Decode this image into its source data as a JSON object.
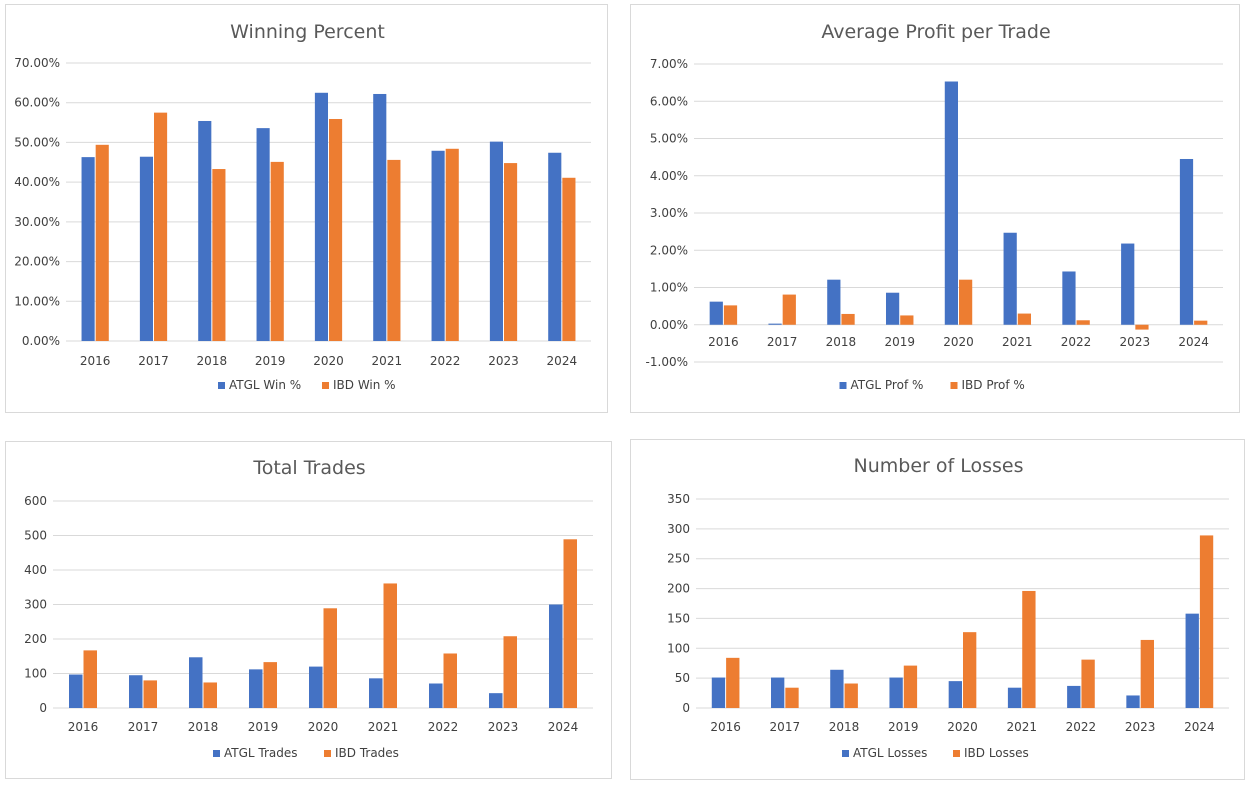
{
  "colors": {
    "atgl": "#4472C4",
    "ibd": "#ED7D31"
  },
  "chart_data": [
    {
      "type": "bar",
      "title": "Winning Percent",
      "categories": [
        "2016",
        "2017",
        "2018",
        "2019",
        "2020",
        "2021",
        "2022",
        "2023",
        "2024"
      ],
      "series": [
        {
          "name": "ATGL Win %",
          "values": [
            46.3,
            46.4,
            55.4,
            53.6,
            62.5,
            62.2,
            47.9,
            50.2,
            47.4
          ]
        },
        {
          "name": "IBD Win %",
          "values": [
            49.4,
            57.5,
            43.3,
            45.1,
            55.9,
            45.6,
            48.4,
            44.8,
            41.1
          ]
        }
      ],
      "ylim": [
        0,
        70
      ],
      "yticks": [
        0,
        10,
        20,
        30,
        40,
        50,
        60,
        70
      ],
      "ytick_labels": [
        "0.00%",
        "10.00%",
        "20.00%",
        "30.00%",
        "40.00%",
        "50.00%",
        "60.00%",
        "70.00%"
      ],
      "legend": "bottom"
    },
    {
      "type": "bar",
      "title": "Average Profit per Trade",
      "categories": [
        "2016",
        "2017",
        "2018",
        "2019",
        "2020",
        "2021",
        "2022",
        "2023",
        "2024"
      ],
      "series": [
        {
          "name": "ATGL Prof %",
          "values": [
            0.62,
            0.03,
            1.21,
            0.86,
            6.53,
            2.47,
            1.43,
            2.18,
            4.45
          ]
        },
        {
          "name": "IBD Prof %",
          "values": [
            0.52,
            0.81,
            0.29,
            0.25,
            1.21,
            0.3,
            0.12,
            -0.13,
            0.11
          ]
        }
      ],
      "ylim": [
        -1,
        7
      ],
      "yticks": [
        -1,
        0,
        1,
        2,
        3,
        4,
        5,
        6,
        7
      ],
      "ytick_labels": [
        "-1.00%",
        "0.00%",
        "1.00%",
        "2.00%",
        "3.00%",
        "4.00%",
        "5.00%",
        "6.00%",
        "7.00%"
      ],
      "legend": "bottom"
    },
    {
      "type": "bar",
      "title": "Total Trades",
      "categories": [
        "2016",
        "2017",
        "2018",
        "2019",
        "2020",
        "2021",
        "2022",
        "2023",
        "2024"
      ],
      "series": [
        {
          "name": "ATGL Trades",
          "values": [
            97,
            95,
            147,
            112,
            120,
            86,
            71,
            43,
            300
          ]
        },
        {
          "name": "IBD Trades",
          "values": [
            167,
            80,
            74,
            133,
            289,
            361,
            158,
            208,
            489
          ]
        }
      ],
      "ylim": [
        0,
        600
      ],
      "yticks": [
        0,
        100,
        200,
        300,
        400,
        500,
        600
      ],
      "ytick_labels": [
        "0",
        "100",
        "200",
        "300",
        "400",
        "500",
        "600"
      ],
      "legend": "bottom"
    },
    {
      "type": "bar",
      "title": "Number of Losses",
      "categories": [
        "2016",
        "2017",
        "2018",
        "2019",
        "2020",
        "2021",
        "2022",
        "2023",
        "2024"
      ],
      "series": [
        {
          "name": "ATGL Losses",
          "values": [
            51,
            51,
            64,
            51,
            45,
            34,
            37,
            21,
            158
          ]
        },
        {
          "name": "IBD Losses",
          "values": [
            84,
            34,
            41,
            71,
            127,
            196,
            81,
            114,
            289
          ]
        }
      ],
      "ylim": [
        0,
        350
      ],
      "yticks": [
        0,
        50,
        100,
        150,
        200,
        250,
        300,
        350
      ],
      "ytick_labels": [
        "0",
        "50",
        "100",
        "150",
        "200",
        "250",
        "300",
        "350"
      ],
      "legend": "bottom"
    }
  ]
}
